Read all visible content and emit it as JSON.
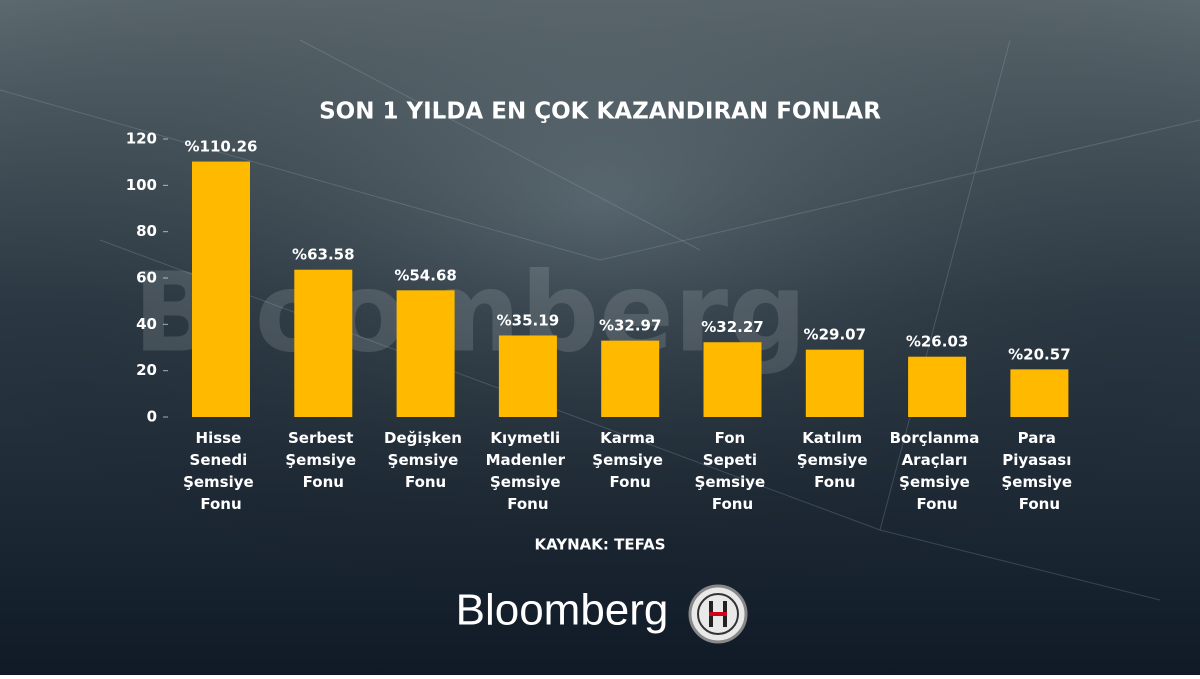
{
  "chart_data": {
    "type": "bar",
    "title": "SON 1 YILDA EN ÇOK KAZANDIRAN FONLAR",
    "categories": [
      "Hisse Senedi Şemsiye Fonu",
      "Serbest Şemsiye Fonu",
      "Değişken Şemsiye Fonu",
      "Kıymetli Madenler Şemsiye Fonu",
      "Karma Şemsiye Fonu",
      "Fon Sepeti Şemsiye Fonu",
      "Katılım Şemsiye Fonu",
      "Borçlanma Araçları Şemsiye Fonu",
      "Para Piyasası Şemsiye Fonu"
    ],
    "values": [
      110.26,
      63.58,
      54.68,
      35.19,
      32.97,
      32.27,
      29.07,
      26.03,
      20.57
    ],
    "value_labels": [
      "%110.26",
      "%63.58",
      "%54.68",
      "%35.19",
      "%32.97",
      "%32.27",
      "%29.07",
      "%26.03",
      "%20.57"
    ],
    "color": "#ffba00",
    "ylim": [
      0,
      120
    ],
    "yticks": [
      0,
      20,
      40,
      60,
      80,
      100,
      120
    ],
    "source": "KAYNAK: TEFAS",
    "brand": "Bloomberg"
  }
}
